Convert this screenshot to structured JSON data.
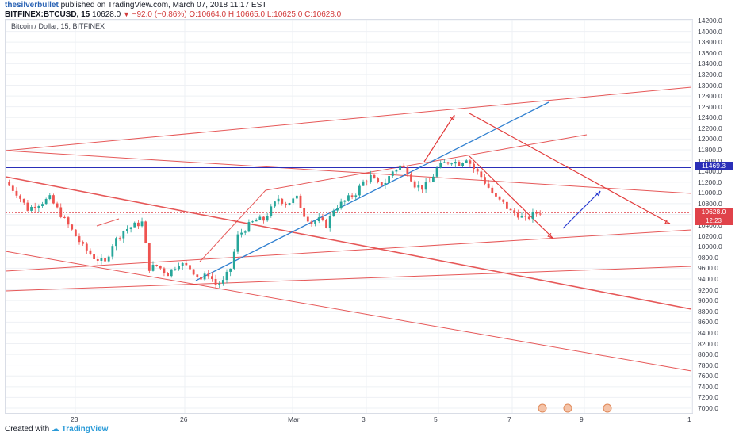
{
  "header": {
    "username": "thesilverbullet",
    "published_text": " published on TradingView.com, March 07, 2018 11:17 EST",
    "symbol": "BITFINEX:BTCUSD, 15",
    "last": "10628.0",
    "change": "−92.0 (−0.86%)",
    "open": "O:10664.0",
    "high": "H:10665.0",
    "low": "L:10625.0",
    "close": "C:10628.0"
  },
  "chart_title": "Bitcoin / Dollar, 15, BITFINEX",
  "price_tags": {
    "level": "11469.3",
    "last": "10628.0",
    "timer": "12:23"
  },
  "footer": {
    "created_with": "Created with",
    "brand": "TradingView"
  },
  "colors": {
    "up": "#26a69a",
    "down": "#ef5350",
    "trend_red": "#e23b3b",
    "trend_blue": "#2f7fd0",
    "level_blue": "#2a2fb8"
  },
  "chart_data": {
    "type": "candlestick",
    "y_ticks": [
      "14200.0",
      "14000.0",
      "13800.0",
      "13600.0",
      "13400.0",
      "13200.0",
      "13000.0",
      "12800.0",
      "12600.0",
      "12400.0",
      "12200.0",
      "12000.0",
      "11800.0",
      "11600.0",
      "11400.0",
      "11200.0",
      "11000.0",
      "10800.0",
      "10600.0",
      "10400.0",
      "10200.0",
      "10000.0",
      "9800.0",
      "9600.0",
      "9400.0",
      "9200.0",
      "9000.0",
      "8800.0",
      "8600.0",
      "8400.0",
      "8200.0",
      "8000.0",
      "7800.0",
      "7600.0",
      "7400.0",
      "7200.0",
      "7000.0"
    ],
    "x_ticks": [
      "23",
      "26",
      "Mar",
      "3",
      "5",
      "7",
      "9",
      "1"
    ],
    "ylim": [
      6900,
      14300
    ],
    "grid": true,
    "horizontal_level": 11469.3,
    "last_price": 10628.0,
    "price_path": [
      [
        0,
        11200
      ],
      [
        3,
        11000
      ],
      [
        6,
        10700
      ],
      [
        9,
        10800
      ],
      [
        12,
        10900
      ],
      [
        15,
        10600
      ],
      [
        18,
        10300
      ],
      [
        21,
        10000
      ],
      [
        24,
        9800
      ],
      [
        27,
        9700
      ],
      [
        29,
        10050
      ],
      [
        32,
        10300
      ],
      [
        35,
        10400
      ],
      [
        37,
        10450
      ],
      [
        39,
        9600
      ],
      [
        41,
        9650
      ],
      [
        44,
        9500
      ],
      [
        47,
        9700
      ],
      [
        50,
        9600
      ],
      [
        53,
        9400
      ],
      [
        55,
        9500
      ],
      [
        57,
        9300
      ],
      [
        59,
        9350
      ],
      [
        61,
        9600
      ],
      [
        63,
        10200
      ],
      [
        66,
        10400
      ],
      [
        68,
        10500
      ],
      [
        70,
        10500
      ],
      [
        72,
        10700
      ],
      [
        74,
        10900
      ],
      [
        76,
        10800
      ],
      [
        79,
        10900
      ],
      [
        81,
        10600
      ],
      [
        83,
        10450
      ],
      [
        85,
        10500
      ],
      [
        87,
        10400
      ],
      [
        89,
        10700
      ],
      [
        91,
        10800
      ],
      [
        93,
        10900
      ],
      [
        95,
        11000
      ],
      [
        97,
        11200
      ],
      [
        99,
        11300
      ],
      [
        101,
        11150
      ],
      [
        103,
        11200
      ],
      [
        105,
        11400
      ],
      [
        107,
        11500
      ],
      [
        109,
        11400
      ],
      [
        111,
        11150
      ],
      [
        113,
        11100
      ],
      [
        115,
        11200
      ],
      [
        117,
        11450
      ],
      [
        119,
        11550
      ],
      [
        121,
        11600
      ],
      [
        123,
        11550
      ],
      [
        125,
        11650
      ],
      [
        127,
        11450
      ],
      [
        129,
        11300
      ],
      [
        131,
        11100
      ],
      [
        133,
        10900
      ],
      [
        135,
        10800
      ],
      [
        137,
        10650
      ],
      [
        139,
        10600
      ],
      [
        141,
        10500
      ],
      [
        143,
        10600
      ],
      [
        145,
        10650
      ]
    ],
    "trendlines_price_time": "drawn annotations (red channel lines, blue trendline and arrows)"
  }
}
